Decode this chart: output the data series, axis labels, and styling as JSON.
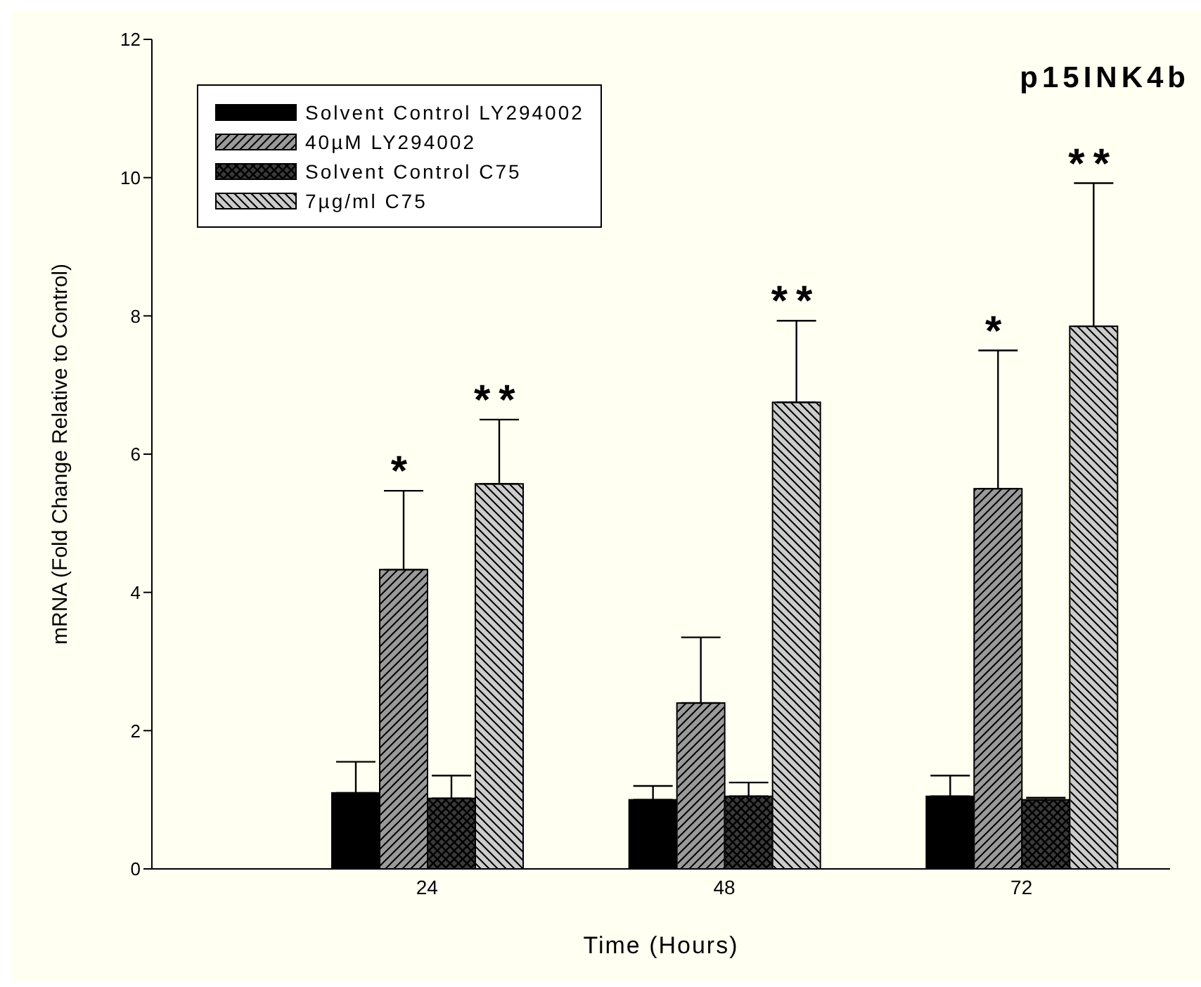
{
  "chart_data": {
    "type": "bar",
    "title": "p15INK4b",
    "xlabel": "Time (Hours)",
    "ylabel": "mRNA (Fold Change Relative to Control)",
    "categories": [
      "24",
      "48",
      "72"
    ],
    "series": [
      {
        "name": "Solvent Control LY294002",
        "color": "#000000",
        "values": [
          1.1,
          1.0,
          1.05
        ],
        "errors": [
          [
            1.1,
            1.55
          ],
          [
            1.0,
            1.2
          ],
          [
            1.05,
            1.35
          ]
        ]
      },
      {
        "name": "40µM LY294002",
        "color": "#9a9a9a",
        "values": [
          4.33,
          2.4,
          5.5
        ],
        "errors": [
          [
            4.33,
            5.47
          ],
          [
            2.4,
            3.35
          ],
          [
            5.5,
            7.5
          ]
        ]
      },
      {
        "name": "Solvent Control C75",
        "color": "#3a3a3a",
        "values": [
          1.02,
          1.05,
          1.0
        ],
        "errors": [
          [
            1.02,
            1.35
          ],
          [
            1.05,
            1.25
          ],
          [
            1.0,
            1.03
          ]
        ]
      },
      {
        "name": "7µg/ml C75",
        "color": "#cccccc",
        "values": [
          5.57,
          6.75,
          7.85
        ],
        "errors": [
          [
            5.57,
            6.5
          ],
          [
            6.75,
            7.93
          ],
          [
            7.85,
            9.92
          ]
        ]
      }
    ],
    "annotations": [
      "*",
      "**",
      "**",
      "*",
      "**"
    ],
    "ylim": [
      0,
      12
    ],
    "yticks": [
      0,
      2,
      4,
      6,
      8,
      10,
      12
    ],
    "grid": false,
    "legend": "top left"
  }
}
